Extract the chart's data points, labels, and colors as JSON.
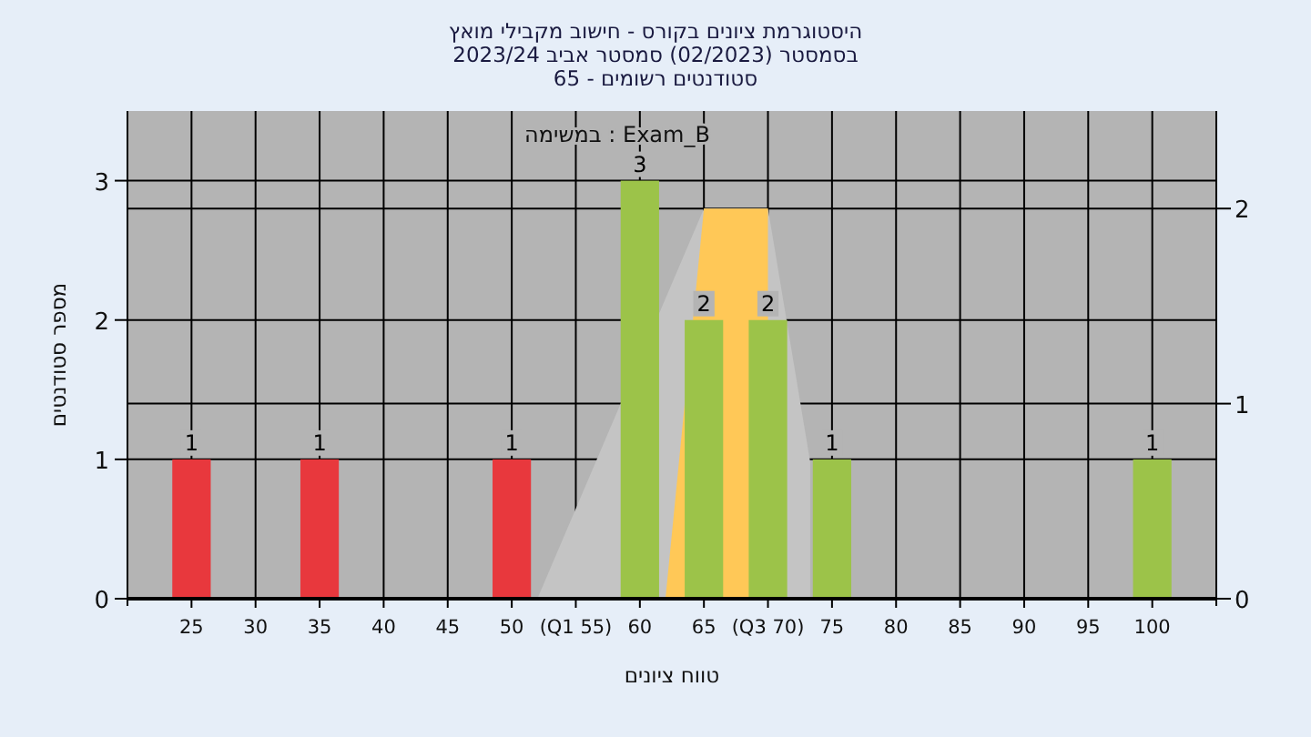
{
  "chart_data": {
    "type": "bar",
    "title": "היסטוגרמת ציונים בקורס - חישוב מקבילי מואץ",
    "subtitle": "בסמסטר  (02/2023)  סמסטר אביב 2023/24",
    "annotations": [
      "סטודנטים רשומים - 65",
      "Exam_B : במשימה"
    ],
    "xlabel": "טווח ציונים",
    "ylabel": "מספר סטודנטים",
    "xlim": [
      20,
      105
    ],
    "xticks": [
      25,
      30,
      35,
      40,
      45,
      50,
      {
        "value": 55,
        "label": "(Q1 55)"
      },
      60,
      65,
      {
        "value": 70,
        "label": "(Q3 70)"
      },
      75,
      80,
      85,
      90,
      95,
      100
    ],
    "ylim": [
      0,
      3.5
    ],
    "yticks": [
      0,
      1,
      2,
      3
    ],
    "y2lim": [
      0,
      2.5
    ],
    "y2ticks": [
      0,
      1,
      2
    ],
    "grid": true,
    "series": [
      {
        "type": "area",
        "axis": "y2",
        "x": [
          52,
          65,
          70,
          73.3
        ],
        "values": [
          0,
          2,
          2,
          0.7
        ],
        "color": "#c4c4c4"
      },
      {
        "type": "area",
        "axis": "y2",
        "x": [
          62,
          65,
          70
        ],
        "values": [
          0,
          2,
          2
        ],
        "color": "#ffc857"
      },
      {
        "x": [
          25,
          35,
          50,
          60,
          65,
          70,
          75,
          100
        ],
        "values": [
          1,
          1,
          1,
          3,
          2,
          2,
          1,
          1
        ],
        "value_labels": [
          "1",
          "1",
          "1",
          "3",
          "2",
          "2",
          "1",
          "1"
        ],
        "colors": [
          "#e8383d",
          "#e8383d",
          "#e8383d",
          "#9cc349",
          "#9cc349",
          "#9cc349",
          "#9cc349",
          "#9cc349"
        ]
      }
    ]
  }
}
